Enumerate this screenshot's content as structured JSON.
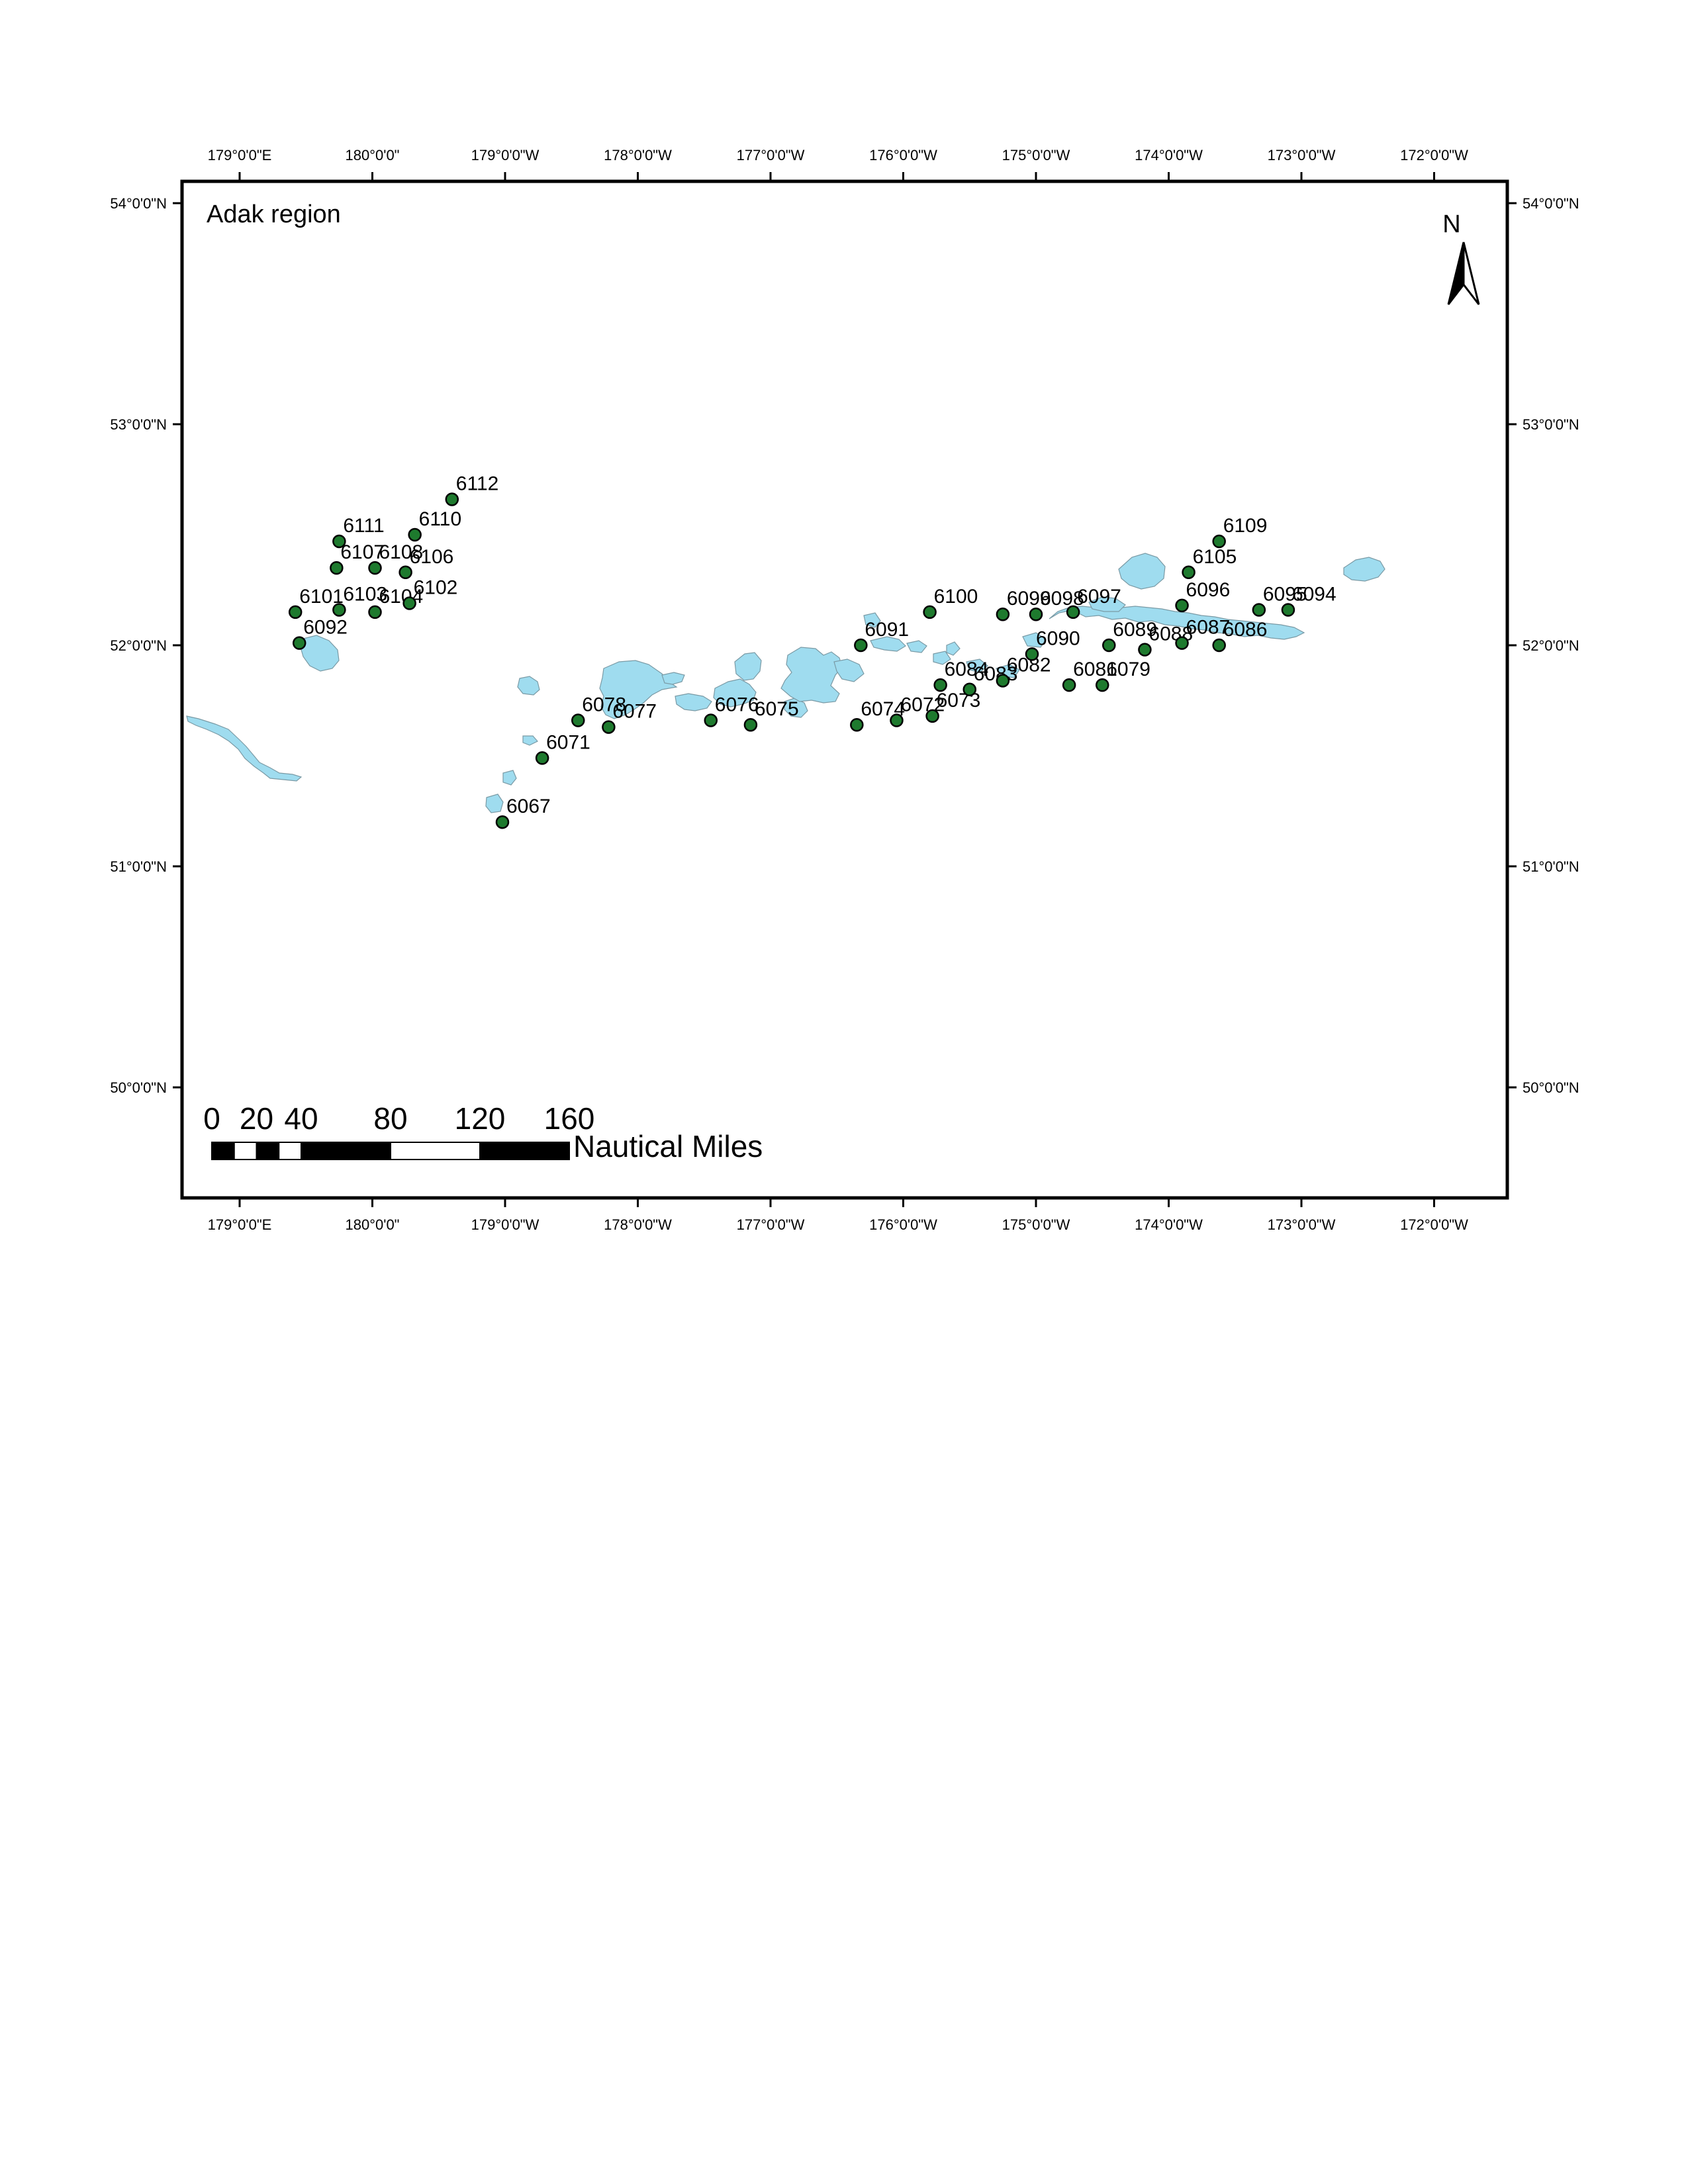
{
  "map": {
    "title": "Adak region",
    "north_label": "N",
    "colors": {
      "land": "#9fdcef",
      "station": "#1e7a2e",
      "frame": "#000000"
    },
    "lon_ticks": [
      {
        "lon": 179,
        "label": "179°0'0\"E"
      },
      {
        "lon": 180,
        "label": "180°0'0\""
      },
      {
        "lon": 181,
        "label": "179°0'0\"W"
      },
      {
        "lon": 182,
        "label": "178°0'0\"W"
      },
      {
        "lon": 183,
        "label": "177°0'0\"W"
      },
      {
        "lon": 184,
        "label": "176°0'0\"W"
      },
      {
        "lon": 185,
        "label": "175°0'0\"W"
      },
      {
        "lon": 186,
        "label": "174°0'0\"W"
      },
      {
        "lon": 187,
        "label": "173°0'0\"W"
      },
      {
        "lon": 188,
        "label": "172°0'0\"W"
      }
    ],
    "lat_ticks": [
      {
        "lat": 54,
        "label": "54°0'0\"N"
      },
      {
        "lat": 53,
        "label": "53°0'0\"N"
      },
      {
        "lat": 52,
        "label": "52°0'0\"N"
      },
      {
        "lat": 51,
        "label": "51°0'0\"N"
      },
      {
        "lat": 50,
        "label": "50°0'0\"N"
      }
    ],
    "scale_bar": {
      "labels": [
        "0",
        "20",
        "40",
        "80",
        "120",
        "160"
      ],
      "values": [
        0,
        20,
        40,
        80,
        120,
        160
      ],
      "units": "Nautical Miles"
    },
    "stations": [
      {
        "id": "6067",
        "lon": 180.98,
        "lat": 51.2
      },
      {
        "id": "6071",
        "lon": 181.28,
        "lat": 51.49
      },
      {
        "id": "6077",
        "lon": 181.78,
        "lat": 51.63
      },
      {
        "id": "6078",
        "lon": 181.55,
        "lat": 51.66
      },
      {
        "id": "6076",
        "lon": 182.55,
        "lat": 51.66
      },
      {
        "id": "6075",
        "lon": 182.85,
        "lat": 51.64
      },
      {
        "id": "6074",
        "lon": 183.65,
        "lat": 51.64
      },
      {
        "id": "6073",
        "lon": 184.22,
        "lat": 51.68
      },
      {
        "id": "6072",
        "lon": 183.95,
        "lat": 51.66
      },
      {
        "id": "6084",
        "lon": 184.28,
        "lat": 51.82
      },
      {
        "id": "6083",
        "lon": 184.5,
        "lat": 51.8
      },
      {
        "id": "6082",
        "lon": 184.75,
        "lat": 51.84
      },
      {
        "id": "6081",
        "lon": 185.25,
        "lat": 51.82
      },
      {
        "id": "6090",
        "lon": 184.97,
        "lat": 51.96
      },
      {
        "id": "6091",
        "lon": 183.68,
        "lat": 52.0
      },
      {
        "id": "6100",
        "lon": 184.2,
        "lat": 52.15
      },
      {
        "id": "6099",
        "lon": 184.75,
        "lat": 52.14
      },
      {
        "id": "6098",
        "lon": 185.0,
        "lat": 52.14
      },
      {
        "id": "6097",
        "lon": 185.28,
        "lat": 52.15
      },
      {
        "id": "6089",
        "lon": 185.55,
        "lat": 52.0
      },
      {
        "id": "6079",
        "lon": 185.5,
        "lat": 51.82
      },
      {
        "id": "6088",
        "lon": 185.82,
        "lat": 51.98
      },
      {
        "id": "6087",
        "lon": 186.1,
        "lat": 52.01
      },
      {
        "id": "6086",
        "lon": 186.38,
        "lat": 52.0
      },
      {
        "id": "6096",
        "lon": 186.1,
        "lat": 52.18
      },
      {
        "id": "6105",
        "lon": 186.15,
        "lat": 52.33
      },
      {
        "id": "6109",
        "lon": 186.38,
        "lat": 52.47
      },
      {
        "id": "6095",
        "lon": 186.68,
        "lat": 52.16
      },
      {
        "id": "6094",
        "lon": 186.9,
        "lat": 52.16
      },
      {
        "id": "6092",
        "lon": 179.45,
        "lat": 52.01
      },
      {
        "id": "6101",
        "lon": 179.42,
        "lat": 52.15
      },
      {
        "id": "6103",
        "lon": 179.75,
        "lat": 52.16
      },
      {
        "id": "6104",
        "lon": 180.02,
        "lat": 52.15
      },
      {
        "id": "6102",
        "lon": 180.28,
        "lat": 52.19
      },
      {
        "id": "6106",
        "lon": 180.25,
        "lat": 52.33
      },
      {
        "id": "6108",
        "lon": 180.02,
        "lat": 52.35
      },
      {
        "id": "6107",
        "lon": 179.73,
        "lat": 52.35
      },
      {
        "id": "6111",
        "lon": 179.75,
        "lat": 52.47
      },
      {
        "id": "6110",
        "lon": 180.32,
        "lat": 52.5
      },
      {
        "id": "6112",
        "lon": 180.6,
        "lat": 52.66
      }
    ]
  }
}
